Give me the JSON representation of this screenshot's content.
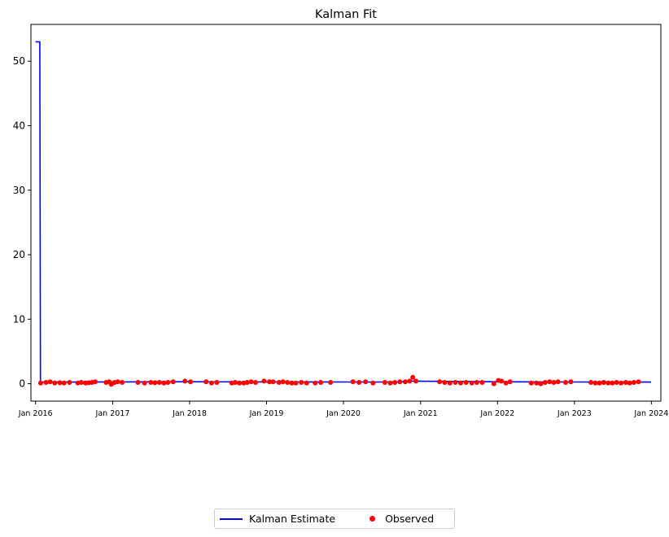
{
  "chart_data": {
    "type": "line",
    "title": "Kalman Fit",
    "xlabel": "",
    "ylabel": "",
    "xlim": [
      "2015-12-10",
      "2024-02-15"
    ],
    "ylim": [
      -2.7,
      55.7
    ],
    "yticks": [
      0,
      10,
      20,
      30,
      40,
      50
    ],
    "xticks": [
      "2016-01-01",
      "2017-01-01",
      "2018-01-01",
      "2019-01-01",
      "2020-01-01",
      "2021-01-01",
      "2022-01-01",
      "2023-01-01",
      "2024-01-01"
    ],
    "xtick_labels": [
      "Jan 2016",
      "Jan 2017",
      "Jan 2018",
      "Jan 2019",
      "Jan 2020",
      "Jan 2021",
      "Jan 2022",
      "Jan 2023",
      "Jan 2024"
    ],
    "grid": false,
    "legend": "bottom-center",
    "series": [
      {
        "name": "Kalman Estimate",
        "kind": "line",
        "color": "#0000ff",
        "points": [
          [
            "2016-01-01",
            53.0
          ],
          [
            "2016-01-21",
            53.0
          ],
          [
            "2016-01-24",
            0.25
          ],
          [
            "2016-06-01",
            0.25
          ],
          [
            "2017-01-01",
            0.28
          ],
          [
            "2018-01-01",
            0.3
          ],
          [
            "2019-01-01",
            0.28
          ],
          [
            "2020-01-01",
            0.26
          ],
          [
            "2020-10-01",
            0.28
          ],
          [
            "2020-11-15",
            0.4
          ],
          [
            "2021-06-01",
            0.35
          ],
          [
            "2022-01-01",
            0.3
          ],
          [
            "2023-01-01",
            0.26
          ],
          [
            "2023-12-31",
            0.25
          ]
        ]
      },
      {
        "name": "Observed",
        "kind": "scatter",
        "color": "#ff0000",
        "points": [
          [
            "2016-01-25",
            0.1
          ],
          [
            "2016-02-20",
            0.2
          ],
          [
            "2016-03-10",
            0.3
          ],
          [
            "2016-04-01",
            0.1
          ],
          [
            "2016-04-25",
            0.15
          ],
          [
            "2016-05-15",
            0.1
          ],
          [
            "2016-06-10",
            0.2
          ],
          [
            "2016-07-20",
            0.1
          ],
          [
            "2016-08-05",
            0.2
          ],
          [
            "2016-08-25",
            0.1
          ],
          [
            "2016-09-10",
            0.15
          ],
          [
            "2016-09-25",
            0.2
          ],
          [
            "2016-10-10",
            0.3
          ],
          [
            "2016-12-01",
            0.2
          ],
          [
            "2016-12-15",
            0.3
          ],
          [
            "2016-12-25",
            -0.1
          ],
          [
            "2017-01-10",
            0.2
          ],
          [
            "2017-01-25",
            0.3
          ],
          [
            "2017-02-15",
            0.2
          ],
          [
            "2017-05-01",
            0.2
          ],
          [
            "2017-06-01",
            0.1
          ],
          [
            "2017-07-01",
            0.2
          ],
          [
            "2017-07-20",
            0.15
          ],
          [
            "2017-08-10",
            0.2
          ],
          [
            "2017-09-01",
            0.1
          ],
          [
            "2017-09-20",
            0.2
          ],
          [
            "2017-10-15",
            0.3
          ],
          [
            "2017-12-10",
            0.4
          ],
          [
            "2018-01-05",
            0.3
          ],
          [
            "2018-03-20",
            0.3
          ],
          [
            "2018-04-15",
            0.1
          ],
          [
            "2018-05-10",
            0.2
          ],
          [
            "2018-07-20",
            0.1
          ],
          [
            "2018-08-05",
            0.2
          ],
          [
            "2018-08-25",
            0.1
          ],
          [
            "2018-09-15",
            0.1
          ],
          [
            "2018-10-01",
            0.2
          ],
          [
            "2018-10-20",
            0.3
          ],
          [
            "2018-11-10",
            0.2
          ],
          [
            "2018-12-20",
            0.4
          ],
          [
            "2019-01-15",
            0.3
          ],
          [
            "2019-02-01",
            0.3
          ],
          [
            "2019-03-01",
            0.2
          ],
          [
            "2019-03-20",
            0.3
          ],
          [
            "2019-04-10",
            0.2
          ],
          [
            "2019-05-01",
            0.1
          ],
          [
            "2019-05-20",
            0.1
          ],
          [
            "2019-06-15",
            0.2
          ],
          [
            "2019-07-10",
            0.1
          ],
          [
            "2019-08-20",
            0.1
          ],
          [
            "2019-09-15",
            0.2
          ],
          [
            "2019-11-01",
            0.2
          ],
          [
            "2020-02-15",
            0.3
          ],
          [
            "2020-03-15",
            0.2
          ],
          [
            "2020-04-15",
            0.3
          ],
          [
            "2020-05-20",
            0.1
          ],
          [
            "2020-07-15",
            0.2
          ],
          [
            "2020-08-10",
            0.1
          ],
          [
            "2020-09-01",
            0.2
          ],
          [
            "2020-09-25",
            0.3
          ],
          [
            "2020-10-20",
            0.3
          ],
          [
            "2020-11-10",
            0.4
          ],
          [
            "2020-11-25",
            1.0
          ],
          [
            "2020-12-10",
            0.4
          ],
          [
            "2021-04-01",
            0.3
          ],
          [
            "2021-04-25",
            0.2
          ],
          [
            "2021-05-20",
            0.1
          ],
          [
            "2021-06-15",
            0.2
          ],
          [
            "2021-07-10",
            0.1
          ],
          [
            "2021-08-05",
            0.2
          ],
          [
            "2021-09-01",
            0.1
          ],
          [
            "2021-09-25",
            0.2
          ],
          [
            "2021-10-20",
            0.2
          ],
          [
            "2021-12-15",
            0.0
          ],
          [
            "2022-01-05",
            0.5
          ],
          [
            "2022-01-20",
            0.4
          ],
          [
            "2022-02-10",
            0.1
          ],
          [
            "2022-03-01",
            0.3
          ],
          [
            "2022-06-10",
            0.1
          ],
          [
            "2022-07-05",
            0.1
          ],
          [
            "2022-07-25",
            0.0
          ],
          [
            "2022-08-15",
            0.2
          ],
          [
            "2022-09-05",
            0.3
          ],
          [
            "2022-09-25",
            0.2
          ],
          [
            "2022-10-15",
            0.3
          ],
          [
            "2022-11-20",
            0.2
          ],
          [
            "2022-12-15",
            0.3
          ],
          [
            "2023-03-20",
            0.2
          ],
          [
            "2023-04-10",
            0.1
          ],
          [
            "2023-04-30",
            0.1
          ],
          [
            "2023-05-20",
            0.2
          ],
          [
            "2023-06-10",
            0.1
          ],
          [
            "2023-06-30",
            0.1
          ],
          [
            "2023-07-20",
            0.2
          ],
          [
            "2023-08-10",
            0.1
          ],
          [
            "2023-09-01",
            0.2
          ],
          [
            "2023-09-20",
            0.1
          ],
          [
            "2023-10-10",
            0.2
          ],
          [
            "2023-11-01",
            0.3
          ]
        ]
      }
    ],
    "legend_labels": [
      "Kalman Estimate",
      "Observed"
    ]
  }
}
